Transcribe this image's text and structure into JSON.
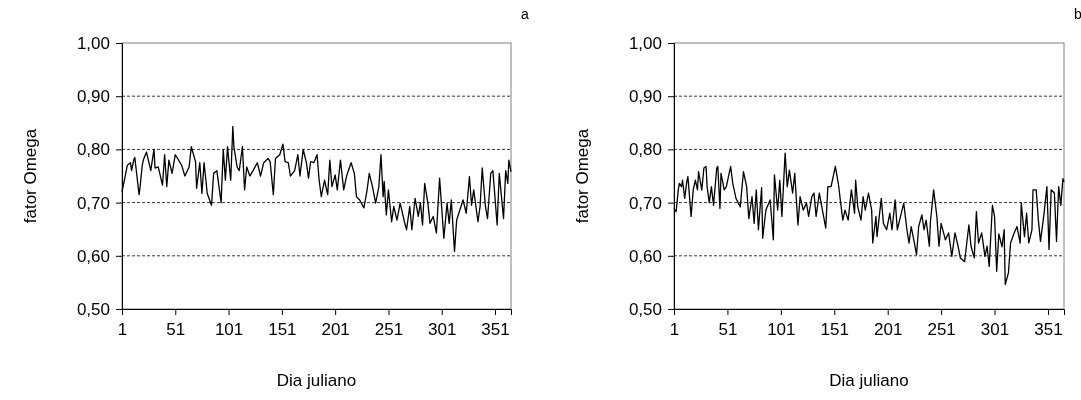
{
  "chart_data": [
    {
      "type": "line",
      "xlabel": "Dia juliano",
      "ylabel": "fator Omega",
      "annotations": [
        "a"
      ],
      "grid": "y",
      "marker": "none",
      "line_style": "solid",
      "xlim": [
        1,
        366
      ],
      "xticks": [
        1,
        51,
        101,
        151,
        201,
        251,
        301,
        351
      ],
      "ylim": [
        0.5,
        1.0
      ],
      "yticks": [
        {
          "value": 0.5,
          "label": "0,50"
        },
        {
          "value": 0.6,
          "label": "0,60"
        },
        {
          "value": 0.7,
          "label": "0,70"
        },
        {
          "value": 0.8,
          "label": "0,80"
        },
        {
          "value": 0.9,
          "label": "0,90"
        },
        {
          "value": 1.0,
          "label": "1,00"
        }
      ],
      "series": [
        {
          "color": "#000000",
          "x": [
            1,
            3,
            6,
            9,
            10,
            12,
            13,
            15,
            17,
            18,
            20,
            21,
            24,
            28,
            31,
            32,
            35,
            39,
            41,
            43,
            45,
            48,
            51,
            54,
            57,
            60,
            64,
            66,
            70,
            71,
            74,
            76,
            78,
            81,
            85,
            87,
            90,
            94,
            96,
            98,
            100,
            103,
            105,
            106,
            109,
            111,
            114,
            116,
            118,
            121,
            124,
            128,
            131,
            134,
            138,
            140,
            143,
            145,
            149,
            152,
            154,
            157,
            159,
            163,
            166,
            168,
            171,
            174,
            176,
            178,
            181,
            184,
            186,
            188,
            191,
            194,
            196,
            198,
            201,
            203,
            206,
            209,
            212,
            216,
            219,
            221,
            224,
            228,
            231,
            233,
            236,
            239,
            242,
            244,
            246,
            247,
            249,
            251,
            254,
            256,
            259,
            262,
            266,
            268,
            271,
            273,
            276,
            279,
            281,
            283,
            285,
            288,
            290,
            293,
            296,
            299,
            303,
            306,
            308,
            310,
            313,
            315,
            318,
            321,
            324,
            327,
            329,
            331,
            335,
            337,
            339,
            342,
            344,
            347,
            349,
            353,
            355,
            359,
            361,
            363,
            364,
            366
          ],
          "values": [
            0.72,
            0.74,
            0.77,
            0.775,
            0.76,
            0.78,
            0.785,
            0.75,
            0.715,
            0.73,
            0.77,
            0.78,
            0.795,
            0.76,
            0.8,
            0.765,
            0.767,
            0.733,
            0.79,
            0.73,
            0.78,
            0.755,
            0.79,
            0.78,
            0.77,
            0.75,
            0.767,
            0.805,
            0.777,
            0.727,
            0.775,
            0.717,
            0.775,
            0.717,
            0.695,
            0.755,
            0.76,
            0.7,
            0.8,
            0.742,
            0.805,
            0.742,
            0.843,
            0.805,
            0.767,
            0.76,
            0.805,
            0.724,
            0.767,
            0.75,
            0.76,
            0.775,
            0.75,
            0.775,
            0.783,
            0.777,
            0.715,
            0.783,
            0.79,
            0.81,
            0.777,
            0.775,
            0.75,
            0.76,
            0.79,
            0.75,
            0.8,
            0.775,
            0.746,
            0.777,
            0.775,
            0.79,
            0.742,
            0.711,
            0.742,
            0.715,
            0.78,
            0.73,
            0.752,
            0.724,
            0.78,
            0.724,
            0.752,
            0.775,
            0.755,
            0.711,
            0.705,
            0.69,
            0.724,
            0.755,
            0.73,
            0.699,
            0.73,
            0.79,
            0.711,
            0.74,
            0.677,
            0.724,
            0.664,
            0.693,
            0.667,
            0.699,
            0.664,
            0.649,
            0.693,
            0.649,
            0.708,
            0.674,
            0.7,
            0.658,
            0.736,
            0.699,
            0.661,
            0.674,
            0.643,
            0.746,
            0.633,
            0.699,
            0.661,
            0.705,
            0.608,
            0.667,
            0.686,
            0.705,
            0.68,
            0.749,
            0.695,
            0.724,
            0.664,
            0.693,
            0.765,
            0.693,
            0.67,
            0.755,
            0.76,
            0.658,
            0.755,
            0.67,
            0.76,
            0.736,
            0.78,
            0.758
          ]
        }
      ]
    },
    {
      "type": "line",
      "xlabel": "Dia juliano",
      "ylabel": "fator Omega",
      "annotations": [
        "b"
      ],
      "grid": "y",
      "marker": "none",
      "line_style": "solid",
      "xlim": [
        1,
        366
      ],
      "xticks": [
        1,
        51,
        101,
        151,
        201,
        251,
        301,
        351
      ],
      "ylim": [
        0.5,
        1.0
      ],
      "yticks": [
        {
          "value": 0.5,
          "label": "0,50"
        },
        {
          "value": 0.6,
          "label": "0,60"
        },
        {
          "value": 0.7,
          "label": "0,70"
        },
        {
          "value": 0.8,
          "label": "0,80"
        },
        {
          "value": 0.9,
          "label": "0,90"
        },
        {
          "value": 1.0,
          "label": "1,00"
        }
      ],
      "series": [
        {
          "color": "#000000",
          "x": [
            1,
            3,
            5,
            6,
            8,
            9,
            11,
            13,
            14,
            17,
            19,
            21,
            23,
            24,
            27,
            29,
            31,
            32,
            34,
            36,
            38,
            41,
            42,
            44,
            45,
            48,
            50,
            54,
            56,
            59,
            63,
            66,
            69,
            71,
            74,
            76,
            78,
            80,
            83,
            84,
            87,
            91,
            94,
            95,
            98,
            100,
            102,
            105,
            107,
            109,
            112,
            114,
            117,
            119,
            122,
            125,
            127,
            130,
            132,
            134,
            137,
            141,
            143,
            145,
            148,
            152,
            155,
            157,
            159,
            161,
            164,
            167,
            170,
            171,
            173,
            176,
            178,
            180,
            183,
            186,
            187,
            190,
            191,
            195,
            197,
            200,
            203,
            205,
            208,
            210,
            213,
            216,
            219,
            221,
            223,
            226,
            228,
            230,
            233,
            235,
            237,
            240,
            241,
            244,
            247,
            249,
            251,
            255,
            258,
            261,
            264,
            267,
            269,
            273,
            275,
            277,
            279,
            282,
            284,
            286,
            289,
            292,
            294,
            296,
            299,
            301,
            303,
            305,
            308,
            310,
            311,
            314,
            316,
            319,
            322,
            325,
            326,
            329,
            331,
            333,
            336,
            337,
            340,
            342,
            344,
            347,
            349,
            350,
            352,
            354,
            357,
            359,
            361,
            363,
            365,
            366
          ],
          "values": [
            0.689,
            0.683,
            0.724,
            0.736,
            0.73,
            0.742,
            0.708,
            0.74,
            0.749,
            0.674,
            0.724,
            0.742,
            0.724,
            0.758,
            0.724,
            0.765,
            0.768,
            0.73,
            0.7,
            0.73,
            0.695,
            0.765,
            0.768,
            0.689,
            0.755,
            0.724,
            0.73,
            0.768,
            0.736,
            0.708,
            0.692,
            0.758,
            0.73,
            0.67,
            0.711,
            0.661,
            0.724,
            0.649,
            0.728,
            0.633,
            0.686,
            0.705,
            0.63,
            0.752,
            0.686,
            0.742,
            0.674,
            0.793,
            0.73,
            0.761,
            0.718,
            0.755,
            0.658,
            0.711,
            0.686,
            0.699,
            0.674,
            0.711,
            0.718,
            0.674,
            0.718,
            0.674,
            0.652,
            0.73,
            0.73,
            0.768,
            0.733,
            0.699,
            0.667,
            0.686,
            0.667,
            0.724,
            0.68,
            0.742,
            0.692,
            0.667,
            0.711,
            0.686,
            0.718,
            0.686,
            0.624,
            0.674,
            0.636,
            0.708,
            0.661,
            0.649,
            0.68,
            0.649,
            0.705,
            0.649,
            0.674,
            0.699,
            0.649,
            0.624,
            0.655,
            0.624,
            0.602,
            0.655,
            0.677,
            0.649,
            0.667,
            0.618,
            0.664,
            0.724,
            0.674,
            0.618,
            0.661,
            0.63,
            0.643,
            0.599,
            0.643,
            0.617,
            0.596,
            0.589,
            0.624,
            0.658,
            0.618,
            0.596,
            0.683,
            0.624,
            0.643,
            0.599,
            0.618,
            0.58,
            0.695,
            0.674,
            0.571,
            0.641,
            0.617,
            0.649,
            0.546,
            0.568,
            0.624,
            0.641,
            0.655,
            0.624,
            0.699,
            0.636,
            0.68,
            0.624,
            0.649,
            0.724,
            0.724,
            0.667,
            0.627,
            0.674,
            0.711,
            0.73,
            0.612,
            0.724,
            0.718,
            0.627,
            0.73,
            0.695,
            0.745,
            0.739
          ]
        }
      ]
    }
  ]
}
